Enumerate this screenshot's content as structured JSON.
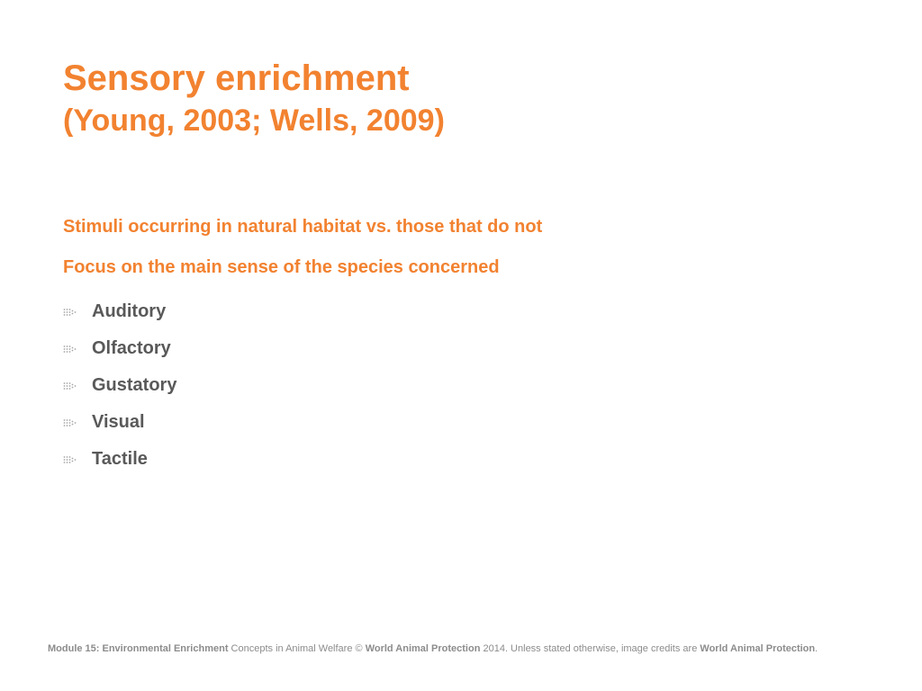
{
  "slide": {
    "title": "Sensory enrichment",
    "subtitle": "(Young, 2003; Wells, 2009)",
    "points": [
      "Stimuli occurring in natural habitat vs. those that do not",
      "Focus on the main sense of the species concerned"
    ],
    "bullets": [
      "Auditory",
      "Olfactory",
      "Gustatory",
      "Visual",
      "Tactile"
    ]
  },
  "footer": {
    "module": "Module 15: Environmental Enrichment",
    "course": " Concepts in Animal Welfare © ",
    "org": "World Animal Protection",
    "credits": " 2014. Unless stated otherwise, image credits are ",
    "org2": "World Animal Protection",
    "end": "."
  },
  "colors": {
    "accent": "#f28230",
    "text": "#595959",
    "footer": "#8c8c8c"
  },
  "icons": {
    "bullet": "dotted-arrow-icon"
  }
}
